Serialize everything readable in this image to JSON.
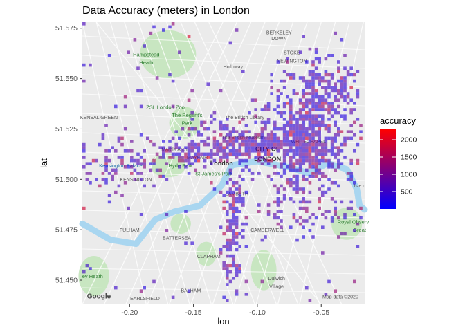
{
  "chart_data": {
    "type": "heatmap",
    "title": "Data Accuracy (meters) in London",
    "xlabel": "lon",
    "ylabel": "lat",
    "xlim": [
      -0.237,
      -0.016
    ],
    "ylim": [
      51.438,
      51.578
    ],
    "x_ticks": [
      {
        "value": -0.2,
        "label": "-0.20"
      },
      {
        "value": -0.15,
        "label": "-0.15"
      },
      {
        "value": -0.1,
        "label": "-0.10"
      },
      {
        "value": -0.05,
        "label": "-0.05"
      }
    ],
    "y_ticks": [
      {
        "value": 51.45,
        "label": "51.450"
      },
      {
        "value": 51.475,
        "label": "51.475"
      },
      {
        "value": 51.5,
        "label": "51.500"
      },
      {
        "value": 51.525,
        "label": "51.525"
      },
      {
        "value": 51.55,
        "label": "51.550"
      },
      {
        "value": 51.575,
        "label": "51.575"
      }
    ],
    "legend": {
      "title": "accuracy",
      "position": "right",
      "min": 0,
      "max": 2300,
      "color_low": "#0000ff",
      "color_high": "#ff0000",
      "breaks": [
        {
          "value": 500,
          "label": "500"
        },
        {
          "value": 1000,
          "label": "1000"
        },
        {
          "value": 1500,
          "label": "1500"
        },
        {
          "value": 2000,
          "label": "2000"
        }
      ]
    },
    "basemap_labels": [
      {
        "text": "Hampstead",
        "lon": -0.187,
        "lat": 51.561,
        "style": "green"
      },
      {
        "text": "Heath",
        "lon": -0.187,
        "lat": 51.557,
        "style": "green"
      },
      {
        "text": "Holloway",
        "lon": -0.119,
        "lat": 51.555,
        "style": "normal"
      },
      {
        "text": "STOKE",
        "lon": -0.073,
        "lat": 51.562,
        "style": "normal"
      },
      {
        "text": "NEWINGTON",
        "lon": -0.073,
        "lat": 51.558,
        "style": "normal"
      },
      {
        "text": "BERKELEY",
        "lon": -0.083,
        "lat": 51.572,
        "style": "normal"
      },
      {
        "text": "DOWN",
        "lon": -0.083,
        "lat": 51.569,
        "style": "normal"
      },
      {
        "text": "ZSL London Zoo",
        "lon": -0.172,
        "lat": 51.535,
        "style": "green"
      },
      {
        "text": "The Regent's",
        "lon": -0.155,
        "lat": 51.531,
        "style": "green"
      },
      {
        "text": "Park",
        "lon": -0.155,
        "lat": 51.527,
        "style": "green"
      },
      {
        "text": "The British Library",
        "lon": -0.11,
        "lat": 51.53,
        "style": "normal"
      },
      {
        "text": "The British Museum",
        "lon": -0.111,
        "lat": 51.52,
        "style": "normal"
      },
      {
        "text": "Marble Arch",
        "lon": -0.165,
        "lat": 51.514,
        "style": "normal"
      },
      {
        "text": "MAYFAIR",
        "lon": -0.147,
        "lat": 51.51,
        "style": "normal"
      },
      {
        "text": "CITY OF",
        "lon": -0.092,
        "lat": 51.514,
        "style": "strong"
      },
      {
        "text": "LONDON",
        "lon": -0.092,
        "lat": 51.509,
        "style": "strong"
      },
      {
        "text": "WHITECHAPEL",
        "lon": -0.06,
        "lat": 51.518,
        "style": "normal"
      },
      {
        "text": "London",
        "lon": -0.128,
        "lat": 51.507,
        "style": "strong"
      },
      {
        "text": "Kensington Palace",
        "lon": -0.207,
        "lat": 51.506,
        "style": "blue"
      },
      {
        "text": "Hyde Park",
        "lon": -0.16,
        "lat": 51.506,
        "style": "green"
      },
      {
        "text": "KENSINGTON",
        "lon": -0.195,
        "lat": 51.499,
        "style": "normal"
      },
      {
        "text": "St James's Park",
        "lon": -0.134,
        "lat": 51.502,
        "style": "green"
      },
      {
        "text": "LAMBETH",
        "lon": -0.116,
        "lat": 51.492,
        "style": "normal"
      },
      {
        "text": "FULHAM",
        "lon": -0.2,
        "lat": 51.474,
        "style": "normal"
      },
      {
        "text": "BATTERSEA",
        "lon": -0.163,
        "lat": 51.47,
        "style": "normal"
      },
      {
        "text": "CAMBERWELL",
        "lon": -0.092,
        "lat": 51.474,
        "style": "normal"
      },
      {
        "text": "Royal Observ",
        "lon": -0.025,
        "lat": 51.478,
        "style": "green"
      },
      {
        "text": "Great",
        "lon": -0.02,
        "lat": 51.474,
        "style": "green"
      },
      {
        "text": "CLAPHAM",
        "lon": -0.138,
        "lat": 51.461,
        "style": "normal"
      },
      {
        "text": "Dulwich",
        "lon": -0.085,
        "lat": 51.45,
        "style": "normal"
      },
      {
        "text": "Village",
        "lon": -0.085,
        "lat": 51.446,
        "style": "normal"
      },
      {
        "text": "BALHAM",
        "lon": -0.152,
        "lat": 51.444,
        "style": "normal"
      },
      {
        "text": "EARLSFIELD",
        "lon": -0.188,
        "lat": 51.44,
        "style": "normal"
      },
      {
        "text": "ey Heath",
        "lon": -0.229,
        "lat": 51.451,
        "style": "green"
      },
      {
        "text": "Isle c",
        "lon": -0.02,
        "lat": 51.496,
        "style": "normal"
      },
      {
        "text": "KENSAL GREEN",
        "lon": -0.224,
        "lat": 51.53,
        "style": "normal"
      },
      {
        "text": "Google",
        "lon": -0.224,
        "lat": 51.441,
        "style": "google"
      },
      {
        "text": "Map data ©2020",
        "lon": -0.035,
        "lat": 51.441,
        "style": "normal"
      }
    ],
    "point_density_regions": [
      {
        "name": "central",
        "lon": -0.105,
        "lat": 51.518,
        "rx": 0.04,
        "ry": 0.01,
        "weight": 1.0
      },
      {
        "name": "east-city",
        "lon": -0.062,
        "lat": 51.52,
        "rx": 0.03,
        "ry": 0.022,
        "weight": 0.95
      },
      {
        "name": "northeast",
        "lon": -0.05,
        "lat": 51.54,
        "rx": 0.024,
        "ry": 0.016,
        "weight": 0.75
      },
      {
        "name": "west-end",
        "lon": -0.15,
        "lat": 51.514,
        "rx": 0.025,
        "ry": 0.006,
        "weight": 0.8
      },
      {
        "name": "south-spine",
        "lon": -0.12,
        "lat": 51.476,
        "rx": 0.007,
        "ry": 0.03,
        "weight": 0.7
      },
      {
        "name": "southeast",
        "lon": -0.06,
        "lat": 51.486,
        "rx": 0.03,
        "ry": 0.01,
        "weight": 0.45
      },
      {
        "name": "west",
        "lon": -0.205,
        "lat": 51.508,
        "rx": 0.03,
        "ry": 0.014,
        "weight": 0.35
      }
    ]
  }
}
